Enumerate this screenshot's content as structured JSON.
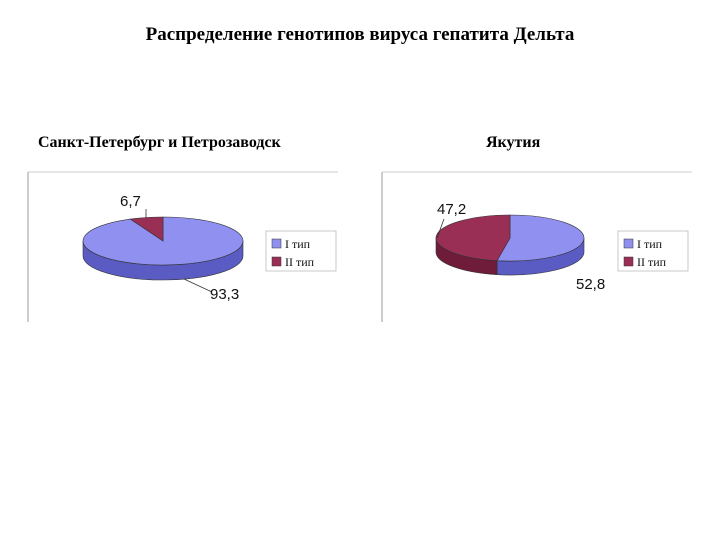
{
  "page": {
    "title": "Распределение генотипов вируса гепатита Дельта"
  },
  "colors": {
    "type1": "#8f90f0",
    "type1_side": "#5a5cc4",
    "type2": "#9a2f55",
    "type2_side": "#6e1c3a"
  },
  "chart_data": [
    {
      "type": "pie",
      "title": "Санкт-Петербург и Петрозаводск",
      "labels": [
        "I тип",
        "II тип"
      ],
      "values": [
        93.3,
        6.7
      ],
      "data_labels": [
        "93,3",
        "6,7"
      ],
      "legend": "right",
      "style": "3d"
    },
    {
      "type": "pie",
      "title": "Якутия",
      "labels": [
        "I тип",
        "II тип"
      ],
      "values": [
        52.8,
        47.2
      ],
      "data_labels": [
        "52,8",
        "47,2"
      ],
      "legend": "right",
      "style": "3d"
    }
  ]
}
